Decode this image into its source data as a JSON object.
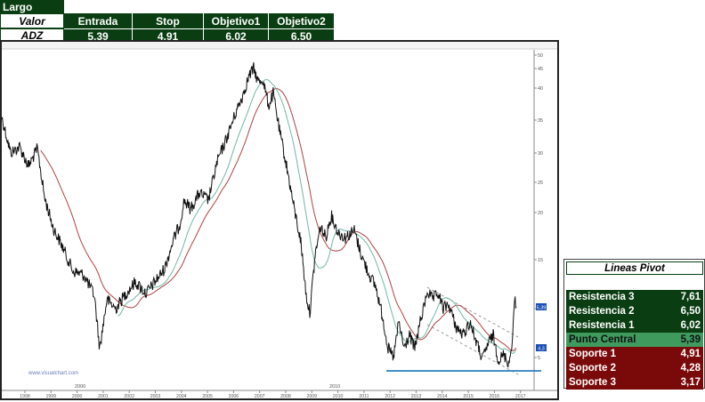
{
  "trade_table": {
    "title": "Largo",
    "headers": [
      "Valor",
      "Entrada",
      "Stop",
      "Objetivo1",
      "Objetivo2"
    ],
    "row": [
      "ADZ",
      "5,39",
      "4,91",
      "6,02",
      "6,50"
    ]
  },
  "chart": {
    "watermark": "www.visualchart.com",
    "axis_ticks": [
      "50",
      "45",
      "40",
      "35",
      "30",
      "25",
      "20",
      "15",
      "10",
      "5",
      "0"
    ],
    "price_markers": [
      "5,39",
      "4,3"
    ],
    "x_labels": [
      "1998",
      "1999",
      "2000",
      "2001",
      "2002",
      "2003",
      "2004",
      "2005",
      "2006",
      "2007",
      "2008",
      "2009",
      "2010",
      "2011",
      "2012",
      "2013",
      "2014",
      "2015",
      "2016",
      "2017"
    ],
    "sub_labels": [
      "2000",
      "2010"
    ],
    "colors": {
      "price": "#111111",
      "ma_slow": "#b04040",
      "ma_fast": "#6fb7a6",
      "support_line": "#2a7fc0",
      "trend": "#999999"
    }
  },
  "pivot": {
    "title": "Lineas Pivot",
    "rows": [
      {
        "label": "Resistencia 3",
        "value": "7,61",
        "kind": "res"
      },
      {
        "label": "Resistencia 2",
        "value": "6,50",
        "kind": "res"
      },
      {
        "label": "Resistencia 1",
        "value": "6,02",
        "kind": "res"
      },
      {
        "label": "Punto Central",
        "value": "5,39",
        "kind": "mid"
      },
      {
        "label": "Soporte 1",
        "value": "4,91",
        "kind": "sup"
      },
      {
        "label": "Soporte 2",
        "value": "4,28",
        "kind": "sup"
      },
      {
        "label": "Soporte 3",
        "value": "3,17",
        "kind": "sup"
      }
    ]
  }
}
